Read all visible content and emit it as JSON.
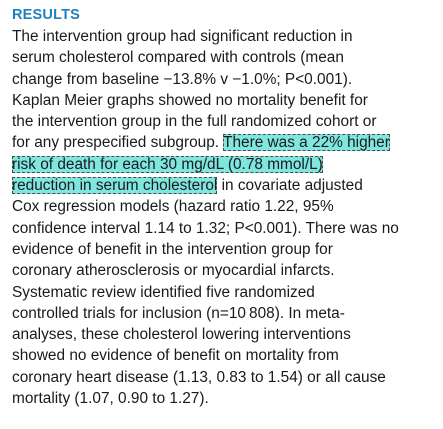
{
  "section": {
    "heading": "RESULTS",
    "segments": [
      "The intervention group had significant reduction in",
      "serum cholesterol compared with controls (mean",
      "change from baseline −13.8% v −1.0%; P<0.001).",
      "Kaplan Meier graphs showed no mortality benefit for",
      "the intervention group in the full randomized cohort or",
      "for any prespecified subgroup. ",
      "There was a 22% higher",
      "risk of death for each 30 mg/dL (0.78 mmol/L)",
      "reduction in serum cholesterol",
      " in covariate adjusted",
      "Cox regression models (hazard ratio 1.22, 95%",
      "confidence interval 1.14 to 1.32; P<0.001). There was no",
      "evidence of benefit in the intervention group for",
      "coronary atherosclerosis or myocardial infarcts.",
      "Systematic review identified five randomized",
      "controlled trials for inclusion (n=10 808). In meta-",
      "analyses, these cholesterol lowering interventions",
      "showed no evidence of benefit on mortality from",
      "coronary heart disease (1.13, 0.83 to 1.54) or all cause",
      "mortality (1.07, 0.90 to 1.27)."
    ]
  },
  "colors": {
    "heading": "#1f7fbf",
    "text": "#1a1a1a",
    "highlight": "#7fe6e0"
  }
}
